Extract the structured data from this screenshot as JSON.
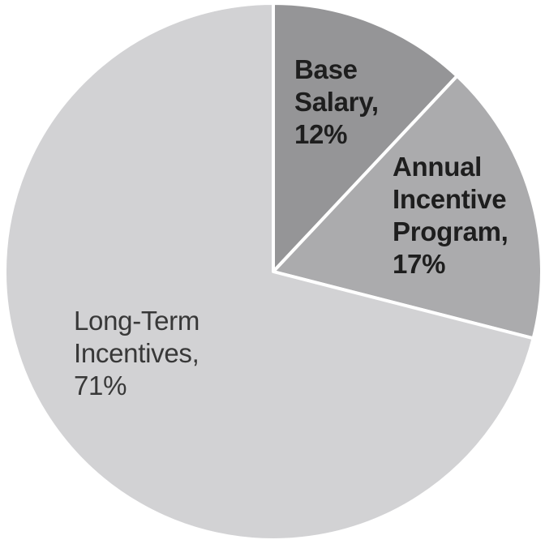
{
  "chart_data": {
    "type": "pie",
    "title": "",
    "categories": [
      "Base Salary",
      "Annual Incentive Program",
      "Long-Term Incentives"
    ],
    "values": [
      12,
      17,
      71
    ],
    "unit": "%",
    "start_angle_deg": 0,
    "direction": "clockwise",
    "legend": "none",
    "background_color": "#ffffff",
    "separator_color": "#ffffff",
    "slices": [
      {
        "label": "Base Salary",
        "value": 12,
        "color": "#959597",
        "display_label": "Base\nSalary,\n12%"
      },
      {
        "label": "Annual Incentive Program",
        "value": 17,
        "color": "#ababad",
        "display_label": "Annual\nIncentive\nProgram,\n17%"
      },
      {
        "label": "Long-Term Incentives",
        "value": 71,
        "color": "#d2d2d4",
        "display_label": "Long-Term\nIncentives,\n71%"
      }
    ]
  }
}
